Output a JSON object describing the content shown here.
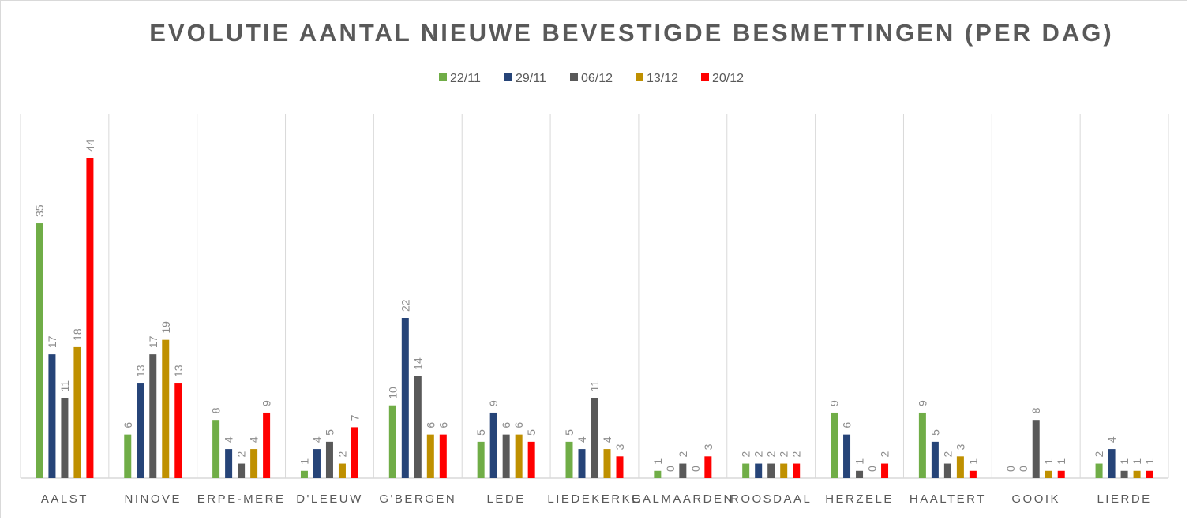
{
  "chart_data": {
    "type": "bar",
    "title": "EVOLUTIE AANTAL NIEUWE BEVESTIGDE BESMETTINGEN (PER DAG)",
    "xlabel": "",
    "ylabel": "",
    "ylim": [
      0,
      50
    ],
    "grid": "vertical category separators",
    "legend_position": "top-center",
    "categories": [
      "AALST",
      "NINOVE",
      "ERPE-MERE",
      "D'LEEUW",
      "G'BERGEN",
      "LEDE",
      "LIEDEKERKE",
      "GALMAARDEN",
      "ROOSDAAL",
      "HERZELE",
      "HAALTERT",
      "GOOIK",
      "LIERDE"
    ],
    "series": [
      {
        "name": "22/11",
        "color": "#70ad47",
        "values": [
          35,
          6,
          8,
          1,
          10,
          5,
          5,
          1,
          2,
          9,
          9,
          0,
          2
        ]
      },
      {
        "name": "29/11",
        "color": "#264478",
        "values": [
          17,
          13,
          4,
          4,
          22,
          9,
          4,
          0,
          2,
          6,
          5,
          0,
          4
        ]
      },
      {
        "name": "06/12",
        "color": "#595959",
        "values": [
          11,
          17,
          2,
          5,
          14,
          6,
          11,
          2,
          2,
          1,
          2,
          8,
          1
        ]
      },
      {
        "name": "13/12",
        "color": "#bf9000",
        "values": [
          18,
          19,
          4,
          2,
          6,
          6,
          4,
          0,
          2,
          0,
          3,
          1,
          1
        ]
      },
      {
        "name": "20/12",
        "color": "#ff0000",
        "values": [
          44,
          13,
          9,
          7,
          6,
          5,
          3,
          3,
          2,
          2,
          1,
          1,
          1
        ]
      }
    ]
  }
}
